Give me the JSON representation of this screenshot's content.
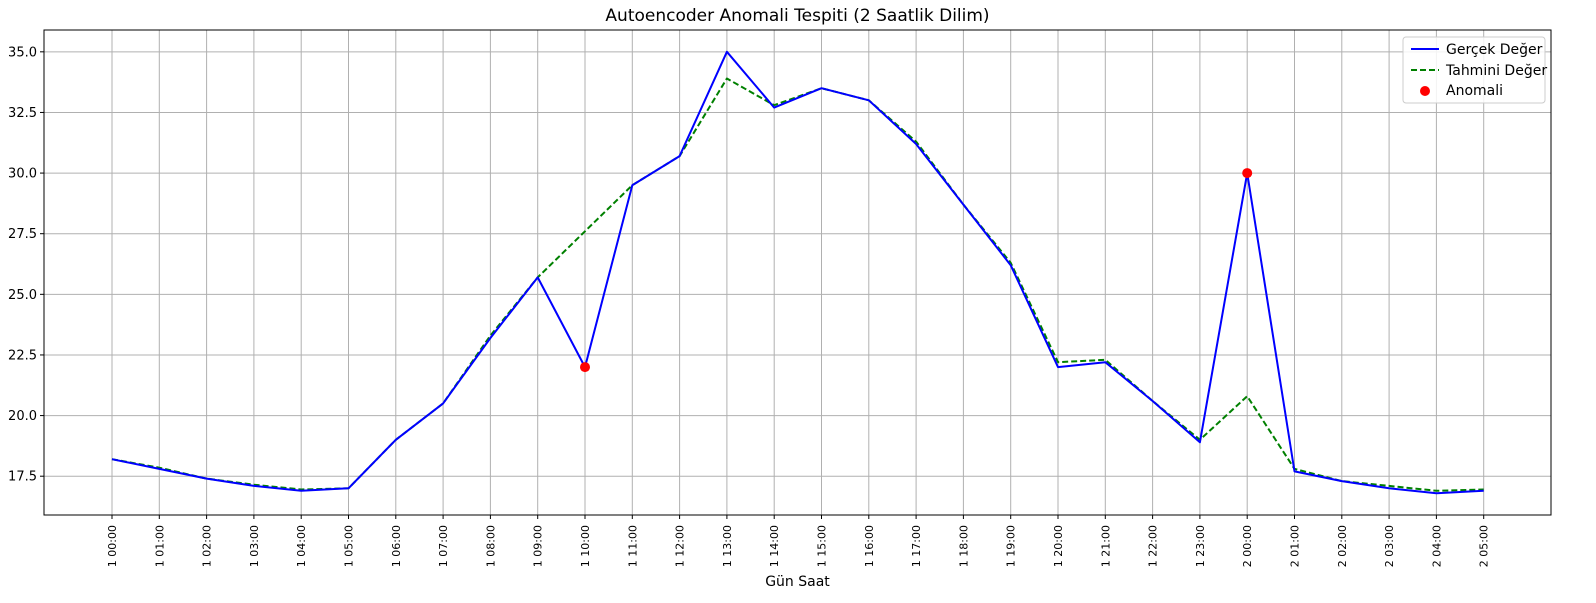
{
  "chart_data": {
    "type": "line",
    "title": "Autoencoder Anomali Tespiti (2 Saatlik Dilim)",
    "xlabel": "Gün Saat",
    "ylabel": "",
    "categories": [
      "1 00:00",
      "1 01:00",
      "1 02:00",
      "1 03:00",
      "1 04:00",
      "1 05:00",
      "1 06:00",
      "1 07:00",
      "1 08:00",
      "1 09:00",
      "1 10:00",
      "1 11:00",
      "1 12:00",
      "1 13:00",
      "1 14:00",
      "1 15:00",
      "1 16:00",
      "1 17:00",
      "1 18:00",
      "1 19:00",
      "1 20:00",
      "1 21:00",
      "1 22:00",
      "1 23:00",
      "2 00:00",
      "2 01:00",
      "2 02:00",
      "2 03:00",
      "2 04:00",
      "2 05:00"
    ],
    "ylim": [
      15.9,
      35.9
    ],
    "yticks": [
      17.5,
      20.0,
      22.5,
      25.0,
      27.5,
      30.0,
      32.5,
      35.0
    ],
    "ytick_labels": [
      "17.5",
      "20.0",
      "22.5",
      "25.0",
      "27.5",
      "30.0",
      "32.5",
      "35.0"
    ],
    "grid": true,
    "legend_position": "top-right",
    "series": [
      {
        "name": "Gerçek Değer",
        "style": "solid",
        "color": "#0000ff",
        "values": [
          18.2,
          17.8,
          17.4,
          17.1,
          16.9,
          17.0,
          19.0,
          20.5,
          23.2,
          25.7,
          22.0,
          29.5,
          30.7,
          35.0,
          32.7,
          33.5,
          33.0,
          31.2,
          28.7,
          26.2,
          22.0,
          22.2,
          20.6,
          18.9,
          30.0,
          17.7,
          17.3,
          17.0,
          16.8,
          16.9
        ]
      },
      {
        "name": "Tahmini Değer",
        "style": "dashed",
        "color": "#008000",
        "values": [
          18.2,
          17.85,
          17.4,
          17.15,
          16.95,
          17.0,
          19.0,
          20.5,
          23.3,
          25.7,
          27.6,
          29.5,
          30.7,
          33.9,
          32.8,
          33.5,
          33.0,
          31.3,
          28.7,
          26.3,
          22.2,
          22.3,
          20.6,
          19.0,
          20.8,
          17.8,
          17.3,
          17.1,
          16.9,
          16.95
        ]
      }
    ],
    "anomalies": {
      "name": "Anomali",
      "color": "#ff0000",
      "points": [
        {
          "x": "1 10:00",
          "y": 22.0
        },
        {
          "x": "2 00:00",
          "y": 30.0
        }
      ]
    }
  }
}
